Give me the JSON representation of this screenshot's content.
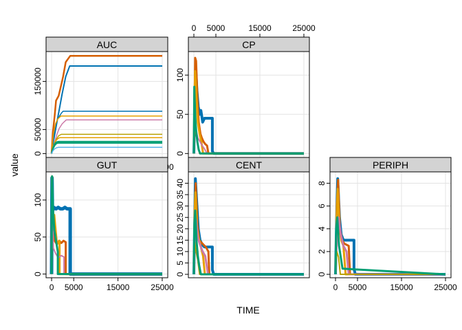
{
  "chart_data": {
    "type": "line",
    "layout": "lattice",
    "xlabel": "TIME",
    "ylabel": "value",
    "grid": true,
    "xlim": [
      -1250,
      26250
    ],
    "x_ticks": [
      0,
      5000,
      15000,
      25000
    ],
    "x_tick_labels": [
      "0",
      "5000",
      "15000",
      "25000"
    ],
    "colors": [
      "#0072B2",
      "#D55E00",
      "#56B4E9",
      "#CC79A7",
      "#E69F00",
      "#009E73",
      "#B8A100"
    ],
    "panels": [
      {
        "name": "AUC",
        "ylim": [
          -8000,
          212000
        ],
        "y_ticks": [
          0,
          50000,
          150000
        ],
        "y_tick_labels": [
          "0",
          "50000",
          "150000"
        ],
        "x_axis": "bottom",
        "series": [
          {
            "color": "#D55E00",
            "width": 2.5,
            "x": [
              0,
              300,
              700,
              1000,
              1600,
              2100,
              2600,
              3200,
              4200,
              25000
            ],
            "y": [
              0,
              45000,
              80000,
              110000,
              120000,
              140000,
              160000,
              190000,
              203000,
              203000
            ]
          },
          {
            "color": "#0072B2",
            "width": 2,
            "x": [
              0,
              500,
              1100,
              1700,
              2400,
              3200,
              4100,
              25000
            ],
            "y": [
              0,
              30000,
              60000,
              90000,
              125000,
              160000,
              182000,
              182000
            ]
          },
          {
            "color": "#0072B2",
            "width": 1.5,
            "x": [
              0,
              400,
              900,
              1400,
              2200,
              2600,
              25000
            ],
            "y": [
              0,
              35000,
              60000,
              72000,
              84000,
              88000,
              88000
            ]
          },
          {
            "color": "#E69F00",
            "width": 1.5,
            "x": [
              0,
              400,
              900,
              1400,
              2100,
              25000
            ],
            "y": [
              0,
              40000,
              62000,
              72000,
              78000,
              78000
            ]
          },
          {
            "color": "#CC79A7",
            "width": 1.5,
            "x": [
              0,
              600,
              1200,
              1700,
              2400,
              3300,
              25000
            ],
            "y": [
              0,
              20000,
              40000,
              52000,
              62000,
              70000,
              70000
            ]
          },
          {
            "color": "#B8A100",
            "width": 1.5,
            "x": [
              0,
              500,
              1100,
              1600,
              2200,
              25000
            ],
            "y": [
              0,
              18000,
              30000,
              37000,
              40000,
              40000
            ]
          },
          {
            "color": "#E69F00",
            "width": 1.5,
            "x": [
              0,
              400,
              900,
              1400,
              1800,
              25000
            ],
            "y": [
              0,
              16000,
              26000,
              31000,
              33000,
              33000
            ]
          },
          {
            "color": "#009E73",
            "width": 2,
            "x": [
              0,
              300,
              700,
              1100,
              1600,
              25000
            ],
            "y": [
              0,
              12000,
              20000,
              24000,
              25000,
              25000
            ]
          },
          {
            "color": "#009E73",
            "width": 2,
            "x": [
              0,
              300,
              700,
              1100,
              1500,
              25000
            ],
            "y": [
              0,
              10000,
              17000,
              21000,
              22000,
              22000
            ]
          },
          {
            "color": "#56B4E9",
            "width": 1.5,
            "x": [
              0,
              300,
              700,
              1100,
              1500,
              25000
            ],
            "y": [
              0,
              6000,
              10000,
              12000,
              13000,
              13000
            ]
          }
        ]
      },
      {
        "name": "CP",
        "ylim": [
          -5,
          130
        ],
        "y_ticks": [
          0,
          50,
          100
        ],
        "y_tick_labels": [
          "0",
          "50",
          "100"
        ],
        "x_axis": "top",
        "series": [
          {
            "color": "#0072B2",
            "width": 4,
            "x": [
              0,
              150,
              400,
              700,
              1000,
              1300,
              1600,
              2000,
              2400,
              4200,
              4200,
              4500,
              25000
            ],
            "y": [
              0,
              45,
              110,
              80,
              60,
              50,
              55,
              40,
              45,
              45,
              3,
              0,
              0
            ]
          },
          {
            "color": "#D55E00",
            "width": 3,
            "x": [
              0,
              200,
              300,
              500,
              800,
              1100,
              1500,
              1800,
              2200,
              2600,
              3000,
              3300,
              25000
            ],
            "y": [
              0,
              80,
              122,
              118,
              70,
              40,
              25,
              20,
              15,
              12,
              10,
              0,
              0
            ]
          },
          {
            "color": "#E69F00",
            "width": 3,
            "x": [
              0,
              100,
              300,
              600,
              900,
              1300,
              1700,
              2100,
              25000
            ],
            "y": [
              0,
              60,
              105,
              70,
              40,
              25,
              15,
              0,
              0
            ]
          },
          {
            "color": "#CC79A7",
            "width": 2,
            "x": [
              0,
              200,
              500,
              900,
              1400,
              1900,
              2400,
              3000,
              25000
            ],
            "y": [
              0,
              50,
              30,
              20,
              15,
              10,
              6,
              0,
              0
            ]
          },
          {
            "color": "#B8A100",
            "width": 2,
            "x": [
              0,
              200,
              500,
              900,
              1300,
              25000
            ],
            "y": [
              0,
              42,
              25,
              12,
              0,
              0
            ]
          },
          {
            "color": "#009E73",
            "width": 3,
            "x": [
              0,
              100,
              250,
              500,
              800,
              1100,
              1400,
              25000
            ],
            "y": [
              0,
              85,
              55,
              30,
              15,
              5,
              0,
              0
            ]
          }
        ]
      },
      {
        "name": "GUT",
        "ylim": [
          -5,
          138
        ],
        "y_ticks": [
          0,
          50,
          100
        ],
        "y_tick_labels": [
          "0",
          "50",
          "100"
        ],
        "x_axis": "bottom",
        "series": [
          {
            "color": "#0072B2",
            "width": 5,
            "x": [
              0,
              100,
              200,
              500,
              1000,
              1500,
              2000,
              2500,
              3000,
              3500,
              4200,
              4200,
              25000
            ],
            "y": [
              0,
              130,
              85,
              90,
              88,
              90,
              88,
              88,
              90,
              88,
              88,
              0,
              0
            ]
          },
          {
            "color": "#D55E00",
            "width": 3,
            "x": [
              0,
              100,
              300,
              700,
              1200,
              1700,
              2200,
              2700,
              3200,
              3200,
              25000
            ],
            "y": [
              0,
              130,
              60,
              45,
              40,
              45,
              42,
              45,
              43,
              0,
              0
            ]
          },
          {
            "color": "#E69F00",
            "width": 3,
            "x": [
              0,
              100,
              300,
              600,
              1200,
              1800,
              1800,
              25000
            ],
            "y": [
              0,
              132,
              75,
              80,
              40,
              45,
              0,
              0
            ]
          },
          {
            "color": "#CC79A7",
            "width": 2,
            "x": [
              0,
              150,
              400,
              900,
              1500,
              2200,
              2800,
              2800,
              25000
            ],
            "y": [
              0,
              100,
              35,
              28,
              22,
              25,
              23,
              0,
              0
            ]
          },
          {
            "color": "#009E73",
            "width": 3,
            "x": [
              0,
              100,
              300,
              600,
              1000,
              1400,
              1400,
              25000
            ],
            "y": [
              0,
              132,
              90,
              60,
              45,
              30,
              0,
              0
            ]
          }
        ]
      },
      {
        "name": "CENT",
        "ylim": [
          -1.5,
          45
        ],
        "y_ticks": [
          0,
          5,
          10,
          15,
          20,
          25,
          30,
          35,
          40
        ],
        "y_tick_labels": [
          "0",
          "5",
          "10",
          "15",
          "20",
          "25",
          "30",
          "35",
          "40"
        ],
        "x_axis": "none",
        "series": [
          {
            "color": "#0072B2",
            "width": 4,
            "x": [
              0,
              150,
              350,
              700,
              1000,
              1400,
              1900,
              2400,
              4200,
              4200,
              4500,
              25000
            ],
            "y": [
              0,
              20,
              42,
              30,
              20,
              15,
              13,
              12,
              12,
              2,
              0,
              0
            ]
          },
          {
            "color": "#D55E00",
            "width": 3,
            "x": [
              0,
              200,
              400,
              800,
              1200,
              1700,
              2200,
              2700,
              3300,
              3500,
              25000
            ],
            "y": [
              0,
              28,
              40,
              22,
              15,
              14,
              13,
              12,
              10,
              0,
              0
            ]
          },
          {
            "color": "#E69F00",
            "width": 3,
            "x": [
              0,
              150,
              350,
              700,
              1100,
              1600,
              2100,
              2500,
              25000
            ],
            "y": [
              0,
              25,
              36,
              20,
              16,
              12,
              8,
              0,
              0
            ]
          },
          {
            "color": "#CC79A7",
            "width": 3,
            "x": [
              0,
              200,
              500,
              900,
              1400,
              2000,
              2600,
              3200,
              25000
            ],
            "y": [
              0,
              18,
              24,
              16,
              13,
              10,
              8,
              0,
              0
            ]
          },
          {
            "color": "#B8A100",
            "width": 2,
            "x": [
              0,
              200,
              500,
              900,
              1300,
              25000
            ],
            "y": [
              0,
              14,
              10,
              6,
              0,
              0
            ]
          },
          {
            "color": "#009E73",
            "width": 3,
            "x": [
              0,
              100,
              300,
              600,
              900,
              1200,
              1600,
              25000
            ],
            "y": [
              0,
              20,
              28,
              15,
              8,
              4,
              0,
              0
            ]
          }
        ]
      },
      {
        "name": "PERIPH",
        "ylim": [
          -0.3,
          9
        ],
        "y_ticks": [
          0,
          2,
          4,
          6,
          8
        ],
        "y_tick_labels": [
          "0",
          "2",
          "4",
          "6",
          "8"
        ],
        "x_axis": "bottom",
        "series": [
          {
            "color": "#0072B2",
            "width": 4,
            "x": [
              0,
              200,
              500,
              900,
              1300,
              1800,
              2400,
              4200,
              4200,
              4500,
              25000
            ],
            "y": [
              0,
              4,
              8.4,
              5,
              3.5,
              3,
              3,
              3,
              0.5,
              0,
              0
            ]
          },
          {
            "color": "#D55E00",
            "width": 3,
            "x": [
              0,
              300,
              600,
              1000,
              1500,
              2000,
              2500,
              3000,
              3300,
              25000
            ],
            "y": [
              0,
              6,
              8.3,
              4,
              3,
              2.7,
              2.6,
              2.5,
              0,
              0
            ]
          },
          {
            "color": "#E69F00",
            "width": 3,
            "x": [
              0,
              250,
              500,
              900,
              1300,
              1800,
              2300,
              25000
            ],
            "y": [
              0,
              5,
              7.5,
              4,
              3,
              2.5,
              0,
              0
            ]
          },
          {
            "color": "#CC79A7",
            "width": 3,
            "x": [
              0,
              300,
              700,
              1200,
              1800,
              2500,
              3000,
              25000
            ],
            "y": [
              0,
              3,
              5,
              3.5,
              2.5,
              2,
              0,
              0
            ]
          },
          {
            "color": "#B8A100",
            "width": 2,
            "x": [
              0,
              300,
              700,
              1100,
              25000
            ],
            "y": [
              0,
              2,
              1.5,
              0,
              0
            ]
          },
          {
            "color": "#009E73",
            "width": 3,
            "x": [
              0,
              150,
              400,
              800,
              1200,
              1600,
              25000
            ],
            "y": [
              0,
              4,
              5,
              2.5,
              1.5,
              0.5,
              0
            ]
          }
        ]
      }
    ]
  }
}
